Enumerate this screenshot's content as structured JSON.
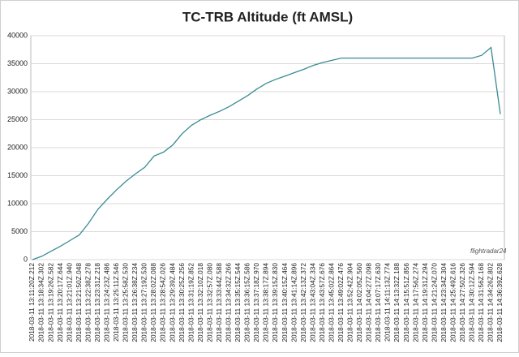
{
  "chart_data": {
    "type": "line",
    "title": "TC-TRB Altitude (ft AMSL)",
    "watermark": "flightradar24",
    "categories": [
      "2018-03-11 13:11:20Z.212",
      "2018-03-11 13:18:34Z.302",
      "2018-03-11 13:19:26Z.582",
      "2018-03-11 13:20:17Z.644",
      "2018-03-11 13:21:01Z.940",
      "2018-03-11 13:21:50Z.048",
      "2018-03-11 13:22:38Z.278",
      "2018-03-11 13:23:31Z.218",
      "2018-03-11 13:24:23Z.486",
      "2018-03-11 13:25:11Z.546",
      "2018-03-11 13:25:58Z.530",
      "2018-03-11 13:26:38Z.234",
      "2018-03-11 13:27:19Z.530",
      "2018-03-11 13:28:02Z.088",
      "2018-03-11 13:28:54Z.026",
      "2018-03-11 13:29:39Z.484",
      "2018-03-11 13:30:25Z.256",
      "2018-03-11 13:31:19Z.852",
      "2018-03-11 13:32:10Z.018",
      "2018-03-11 13:32:57Z.080",
      "2018-03-11 13:33:44Z.588",
      "2018-03-11 13:34:32Z.266",
      "2018-03-11 13:35:15Z.544",
      "2018-03-11 13:36:15Z.586",
      "2018-03-11 13:37:18Z.970",
      "2018-03-11 13:38:17Z.894",
      "2018-03-11 13:39:15Z.830",
      "2018-03-11 13:40:15Z.464",
      "2018-03-11 13:41:14Z.896",
      "2018-03-11 13:42:13Z.372",
      "2018-03-11 13:43:04Z.334",
      "2018-03-11 13:43:57Z.676",
      "2018-03-11 13:45:02Z.864",
      "2018-03-11 13:49:02Z.476",
      "2018-03-11 13:52:42Z.904",
      "2018-03-11 14:02:05Z.560",
      "2018-03-11 14:04:27Z.098",
      "2018-03-11 14:07:17Z.630",
      "2018-03-11 14:11:13Z.774",
      "2018-03-11 14:13:32Z.188",
      "2018-03-11 14:15:51Z.856",
      "2018-03-11 14:17:56Z.274",
      "2018-03-11 14:19:31Z.294",
      "2018-03-11 14:21:24Z.070",
      "2018-03-11 14:23:34Z.304",
      "2018-03-11 14:25:49Z.616",
      "2018-03-11 14:27:50Z.326",
      "2018-03-11 14:30:12Z.594",
      "2018-03-11 14:31:56Z.168",
      "2018-03-11 14:34:26Z.802",
      "2018-03-11 14:36:39Z.628"
    ],
    "values": [
      0,
      600,
      1500,
      2400,
      3400,
      4400,
      6500,
      9000,
      10800,
      12500,
      14000,
      15300,
      16500,
      18500,
      19200,
      20500,
      22500,
      24000,
      25000,
      25800,
      26500,
      27300,
      28300,
      29300,
      30500,
      31500,
      32200,
      32800,
      33400,
      34000,
      34700,
      35200,
      35600,
      36000,
      36000,
      36000,
      36000,
      36000,
      36000,
      36000,
      36000,
      36000,
      36000,
      36000,
      36000,
      36000,
      36000,
      36000,
      36500,
      37900,
      26000
    ],
    "color": "#3a8a96",
    "ylim": [
      0,
      40000
    ],
    "yticks": [
      0,
      5000,
      10000,
      15000,
      20000,
      25000,
      30000,
      35000,
      40000
    ],
    "grid": true
  }
}
